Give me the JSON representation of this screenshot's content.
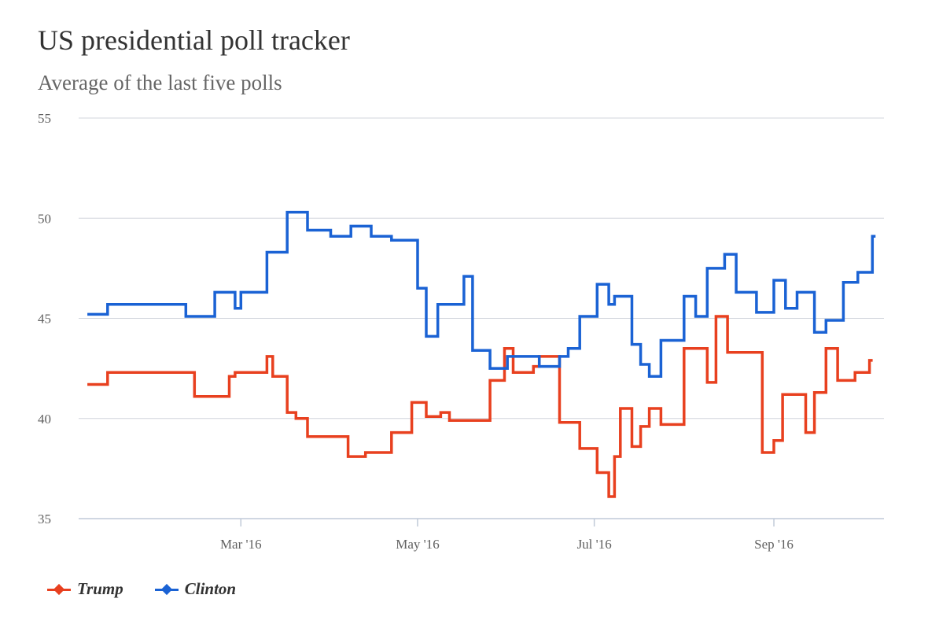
{
  "title": "US presidential poll tracker",
  "subtitle": "Average of the last five polls",
  "colors": {
    "trump": "#e8401f",
    "clinton": "#1a62d4",
    "grid": "#d0d4dc",
    "axis": "#c0cad8"
  },
  "chart_data": {
    "type": "line",
    "step": true,
    "title": "US presidential poll tracker",
    "subtitle": "Average of the last five polls",
    "xlabel": "",
    "ylabel": "",
    "ylim": [
      35,
      55
    ],
    "yticks": [
      35,
      40,
      45,
      50,
      55
    ],
    "xlim": [
      "2016-01-05",
      "2016-10-09"
    ],
    "xticks": [
      {
        "label": "Mar '16",
        "date": "2016-03-01"
      },
      {
        "label": "May '16",
        "date": "2016-05-01"
      },
      {
        "label": "Jul '16",
        "date": "2016-07-01"
      },
      {
        "label": "Sep '16",
        "date": "2016-09-01"
      }
    ],
    "grid": true,
    "legend": "bottom-left",
    "series": [
      {
        "name": "Trump",
        "color": "#e8401f",
        "x": [
          "2016-01-08",
          "2016-01-15",
          "2016-01-17",
          "2016-02-14",
          "2016-02-26",
          "2016-02-28",
          "2016-03-10",
          "2016-03-12",
          "2016-03-17",
          "2016-03-20",
          "2016-03-24",
          "2016-04-07",
          "2016-04-13",
          "2016-04-15",
          "2016-04-22",
          "2016-04-29",
          "2016-05-04",
          "2016-05-09",
          "2016-05-12",
          "2016-05-17",
          "2016-05-26",
          "2016-05-31",
          "2016-06-03",
          "2016-06-10",
          "2016-06-12",
          "2016-06-19",
          "2016-06-26",
          "2016-07-02",
          "2016-07-06",
          "2016-07-08",
          "2016-07-10",
          "2016-07-14",
          "2016-07-17",
          "2016-07-20",
          "2016-07-24",
          "2016-08-01",
          "2016-08-09",
          "2016-08-12",
          "2016-08-16",
          "2016-08-28",
          "2016-09-01",
          "2016-09-04",
          "2016-09-08",
          "2016-09-12",
          "2016-09-15",
          "2016-09-19",
          "2016-09-23",
          "2016-09-29",
          "2016-10-04"
        ],
        "values": [
          41.7,
          42.3,
          42.3,
          41.1,
          42.1,
          42.3,
          43.1,
          42.1,
          40.3,
          40.0,
          39.1,
          38.1,
          38.3,
          38.3,
          39.3,
          40.8,
          40.1,
          40.3,
          39.9,
          39.9,
          41.9,
          43.5,
          42.3,
          42.6,
          43.1,
          39.8,
          38.5,
          37.3,
          36.1,
          38.1,
          40.5,
          38.6,
          39.6,
          40.5,
          39.7,
          43.5,
          41.8,
          45.1,
          43.3,
          38.3,
          38.9,
          41.2,
          41.2,
          39.3,
          41.3,
          43.5,
          41.9,
          42.3,
          42.9
        ]
      },
      {
        "name": "Clinton",
        "color": "#1a62d4",
        "x": [
          "2016-01-08",
          "2016-01-15",
          "2016-02-11",
          "2016-02-21",
          "2016-02-28",
          "2016-03-01",
          "2016-03-10",
          "2016-03-17",
          "2016-03-24",
          "2016-04-01",
          "2016-04-08",
          "2016-04-15",
          "2016-04-22",
          "2016-05-01",
          "2016-05-04",
          "2016-05-08",
          "2016-05-17",
          "2016-05-20",
          "2016-05-26",
          "2016-06-01",
          "2016-06-12",
          "2016-06-19",
          "2016-06-22",
          "2016-06-26",
          "2016-07-02",
          "2016-07-06",
          "2016-07-08",
          "2016-07-14",
          "2016-07-17",
          "2016-07-20",
          "2016-07-24",
          "2016-08-01",
          "2016-08-05",
          "2016-08-09",
          "2016-08-15",
          "2016-08-19",
          "2016-08-26",
          "2016-09-01",
          "2016-09-05",
          "2016-09-09",
          "2016-09-15",
          "2016-09-19",
          "2016-09-25",
          "2016-09-30",
          "2016-10-05"
        ],
        "values": [
          45.2,
          45.7,
          45.1,
          46.3,
          45.5,
          46.3,
          48.3,
          50.3,
          49.4,
          49.1,
          49.6,
          49.1,
          48.9,
          46.5,
          44.1,
          45.7,
          47.1,
          43.4,
          42.5,
          43.1,
          42.6,
          43.1,
          43.5,
          45.1,
          46.7,
          45.7,
          46.1,
          43.7,
          42.7,
          42.1,
          43.9,
          46.1,
          45.1,
          47.5,
          48.2,
          46.3,
          45.3,
          46.9,
          45.5,
          46.3,
          44.3,
          44.9,
          46.8,
          47.3,
          49.1
        ]
      }
    ]
  },
  "legend": [
    {
      "name": "Trump",
      "color": "#e8401f"
    },
    {
      "name": "Clinton",
      "color": "#1a62d4"
    }
  ]
}
